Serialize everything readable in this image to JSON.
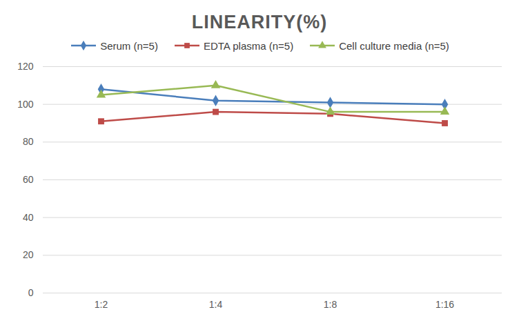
{
  "chart_data": {
    "type": "line",
    "title": "LINEARITY(%)",
    "categories": [
      "1:2",
      "1:4",
      "1:8",
      "1:16"
    ],
    "series": [
      {
        "name": "Serum (n=5)",
        "color": "#4a7ebb",
        "marker": "diamond",
        "values": [
          108,
          102,
          101,
          100
        ]
      },
      {
        "name": "EDTA plasma (n=5)",
        "color": "#be4b48",
        "marker": "square",
        "values": [
          91,
          96,
          95,
          90
        ]
      },
      {
        "name": "Cell culture media (n=5)",
        "color": "#98b954",
        "marker": "triangle",
        "values": [
          105,
          110,
          96,
          96
        ]
      }
    ],
    "ylim": [
      0,
      120
    ],
    "yticks": [
      0,
      20,
      40,
      60,
      80,
      100,
      120
    ],
    "grid": true,
    "legend": "top"
  }
}
